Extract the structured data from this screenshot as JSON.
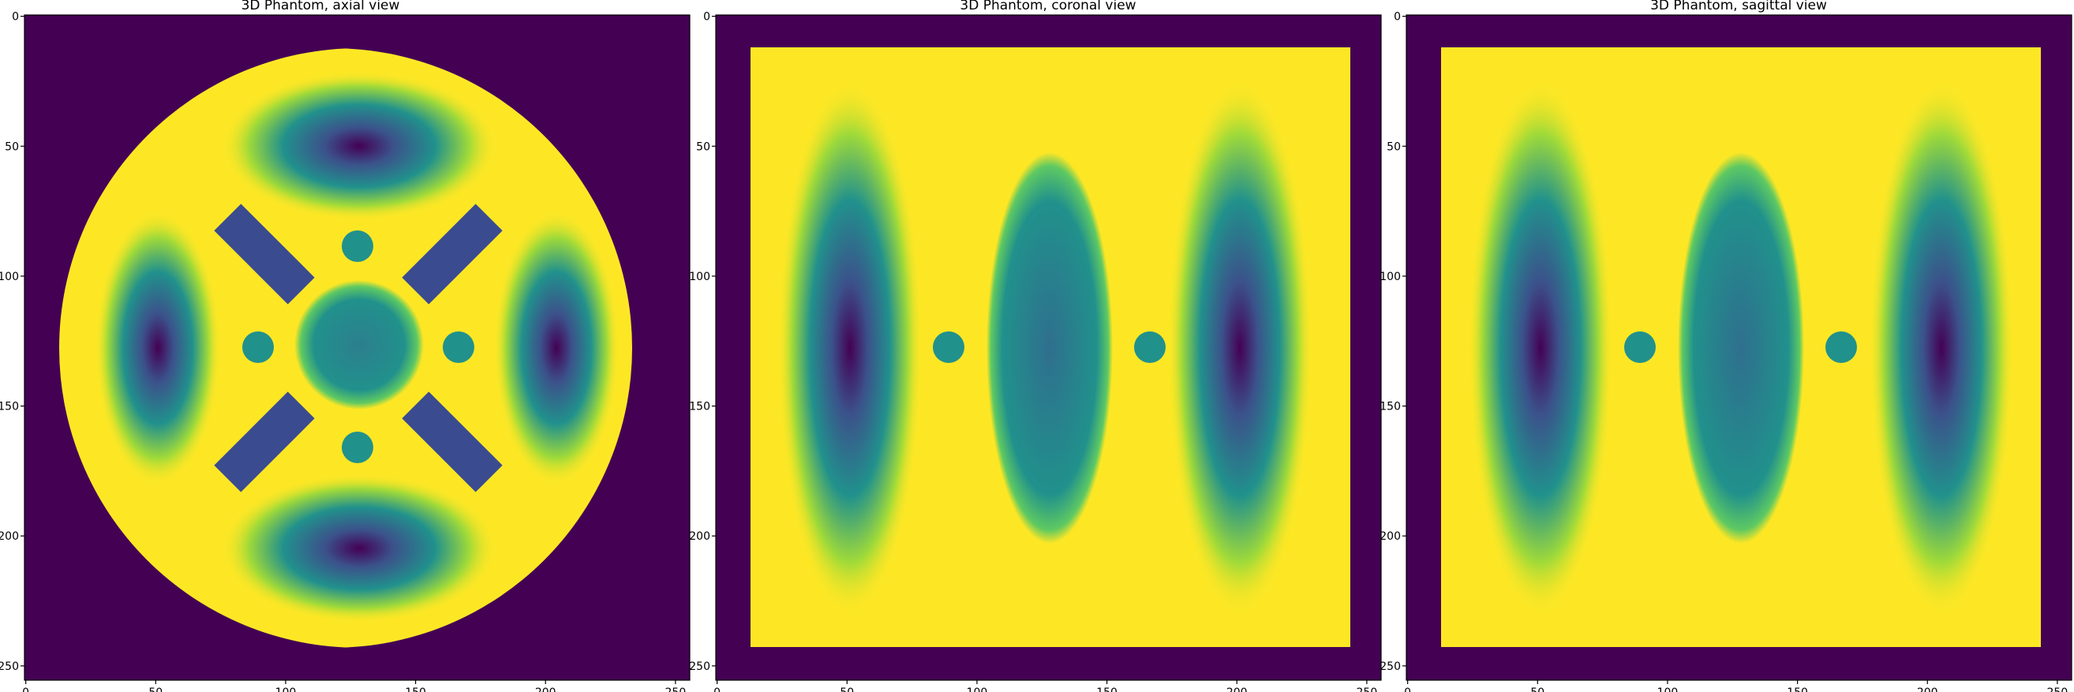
{
  "figure": {
    "panels": [
      {
        "id": "axial",
        "title": "3D Phantom, axial view",
        "xticks": [
          "0",
          "50",
          "100",
          "150",
          "200",
          "250"
        ],
        "yticks": [
          "0",
          "50",
          "100",
          "150",
          "200",
          "250"
        ]
      },
      {
        "id": "coronal",
        "title": "3D Phantom, coronal view",
        "xticks": [
          "0",
          "50",
          "100",
          "150",
          "200",
          "250"
        ],
        "yticks": [
          "0",
          "50",
          "100",
          "150",
          "200",
          "250"
        ]
      },
      {
        "id": "sagittal",
        "title": "3D Phantom, sagittal view",
        "xticks": [
          "0",
          "50",
          "100",
          "150",
          "200",
          "250"
        ],
        "yticks": [
          "0",
          "50",
          "100",
          "150",
          "200",
          "250"
        ]
      }
    ],
    "colors": {
      "background": "#440154",
      "body": "#fde725",
      "insert": "#21918c",
      "dark_core": "#440154",
      "mid": "#3b528b",
      "bar": "#3b4b8f",
      "sphere": "#2c7f8e"
    }
  }
}
